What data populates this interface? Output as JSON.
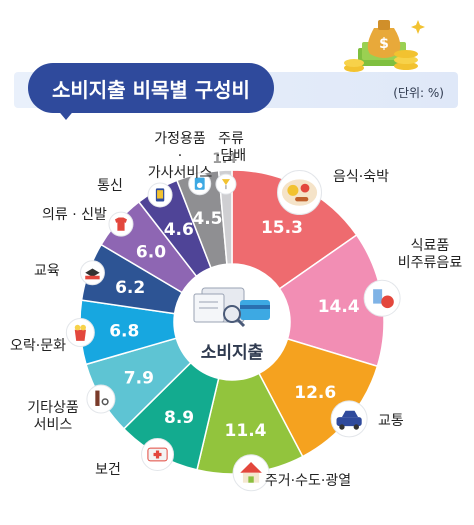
{
  "header": {
    "title": "소비지출 비목별 구성비",
    "unit": "(단위: %)"
  },
  "center_label": "소비지출",
  "chart_data": {
    "type": "pie",
    "title": "소비지출 비목별 구성비",
    "unit": "(단위: %)",
    "slices": [
      {
        "label": "음식·숙박",
        "value": 15.3,
        "color": "#ee6b6f"
      },
      {
        "label": "식료품·비주류음료",
        "value": 14.4,
        "color": "#f28eb4"
      },
      {
        "label": "교통",
        "value": 12.6,
        "color": "#f5a21f"
      },
      {
        "label": "주거·수도·광열",
        "value": 11.4,
        "color": "#92c43d"
      },
      {
        "label": "보건",
        "value": 8.9,
        "color": "#13ab8f"
      },
      {
        "label": "기타상품·서비스",
        "value": 7.9,
        "color": "#5ec4d3"
      },
      {
        "label": "오락·문화",
        "value": 6.8,
        "color": "#17a7e0"
      },
      {
        "label": "교육",
        "value": 6.2,
        "color": "#2d5494"
      },
      {
        "label": "의류·신발",
        "value": 6.0,
        "color": "#8e66b3"
      },
      {
        "label": "통신",
        "value": 4.6,
        "color": "#4f4497"
      },
      {
        "label": "가정용품·가사서비스",
        "value": 4.5,
        "color": "#8f8f92"
      },
      {
        "label": "주류·담배",
        "value": 1.4,
        "color": "#cfcfd2"
      }
    ]
  },
  "category_labels": [
    {
      "lines": [
        "음식·숙박"
      ],
      "icon": "food-plate-icon"
    },
    {
      "lines": [
        "식료품",
        "비주류음료"
      ],
      "icon": "grocery-icon"
    },
    {
      "lines": [
        "교통"
      ],
      "icon": "car-icon"
    },
    {
      "lines": [
        "주거·수도·광열"
      ],
      "icon": "house-icon"
    },
    {
      "lines": [
        "보건"
      ],
      "icon": "first-aid-kit-icon"
    },
    {
      "lines": [
        "기타상품",
        "서비스"
      ],
      "icon": "haircut-tools-icon"
    },
    {
      "lines": [
        "오락·문화"
      ],
      "icon": "popcorn-icon"
    },
    {
      "lines": [
        "교육"
      ],
      "icon": "graduation-cap-icon"
    },
    {
      "lines": [
        "의류 · 신발"
      ],
      "icon": "clothing-icon"
    },
    {
      "lines": [
        "통신"
      ],
      "icon": "phone-icon"
    },
    {
      "lines": [
        "가정용품",
        "·",
        "가사서비스"
      ],
      "icon": "appliance-icon"
    },
    {
      "lines": [
        "주류",
        "·담배"
      ],
      "icon": "drink-icon"
    }
  ]
}
